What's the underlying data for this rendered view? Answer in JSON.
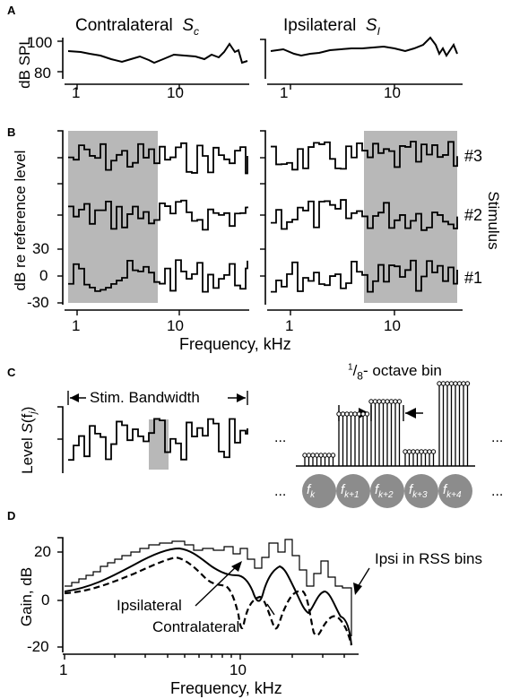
{
  "panels": {
    "A": {
      "label": "A",
      "left_title": "Contralateral",
      "left_symbol": "S",
      "left_sub": "c",
      "right_title": "Ipsilateral",
      "right_symbol": "S",
      "right_sub": "I",
      "ylabel": "dB SPL",
      "yticks": [
        "100",
        "80"
      ],
      "xticks": [
        "1",
        "10"
      ]
    },
    "B": {
      "label": "B",
      "ylabel": "dB re reference level",
      "yticks": [
        "30",
        "0",
        "-30"
      ],
      "xticks": [
        "1",
        "10"
      ],
      "xlabel": "Frequency, kHz",
      "side_label": "Stimulus",
      "stimuli": [
        "#3",
        "#2",
        "#1"
      ]
    },
    "C": {
      "label": "C",
      "bandwidth_label": "Stim. Bandwidth",
      "ylabel_prefix": "Level ",
      "ylabel_sym": "S",
      "ylabel_arg": "(f",
      "ylabel_sub": "j",
      "ylabel_end": ")",
      "bin_num": "1",
      "bin_den": "8",
      "bin_label": "- octave bin",
      "ellipsis": "...",
      "bins": [
        {
          "f": "f",
          "sub": "k"
        },
        {
          "f": "f",
          "sub": "k+1"
        },
        {
          "f": "f",
          "sub": "k+2"
        },
        {
          "f": "f",
          "sub": "k+3"
        },
        {
          "f": "f",
          "sub": "k+4"
        }
      ]
    },
    "D": {
      "label": "D",
      "ylabel": "Gain, dB",
      "xlabel": "Frequency, kHz",
      "yticks": [
        "20",
        "0",
        "-20"
      ],
      "xticks": [
        "1",
        "10"
      ],
      "annotations": {
        "ipsi_rss": "Ipsi in RSS bins",
        "ipsilateral": "Ipsilateral",
        "contralateral": "Contralateral"
      }
    }
  }
}
